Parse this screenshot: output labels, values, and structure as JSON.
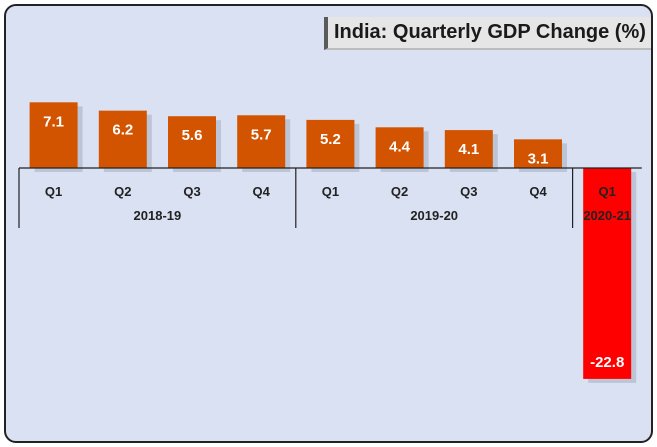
{
  "chart_data": {
    "type": "bar",
    "title": "India: Quarterly GDP Change (%)",
    "categories": [
      "Q1",
      "Q2",
      "Q3",
      "Q4",
      "Q1",
      "Q2",
      "Q3",
      "Q4",
      "Q1"
    ],
    "groups": [
      {
        "label": "2018-19",
        "count": 4
      },
      {
        "label": "2019-20",
        "count": 4
      },
      {
        "label": "2020-21",
        "count": 1
      }
    ],
    "values": [
      7.1,
      6.2,
      5.6,
      5.7,
      5.2,
      4.4,
      4.1,
      3.1,
      -22.8
    ],
    "value_labels": [
      "7.1",
      "6.2",
      "5.6",
      "5.7",
      "5.2",
      "4.4",
      "4.1",
      "3.1",
      "-22.8"
    ],
    "xlabel": "",
    "ylabel": "",
    "ylim": [
      -23,
      8
    ],
    "grid": false,
    "legend": "none",
    "colors": {
      "positive": "#d35400",
      "negative": "#ff0000",
      "background": "#d9e1f2"
    }
  }
}
